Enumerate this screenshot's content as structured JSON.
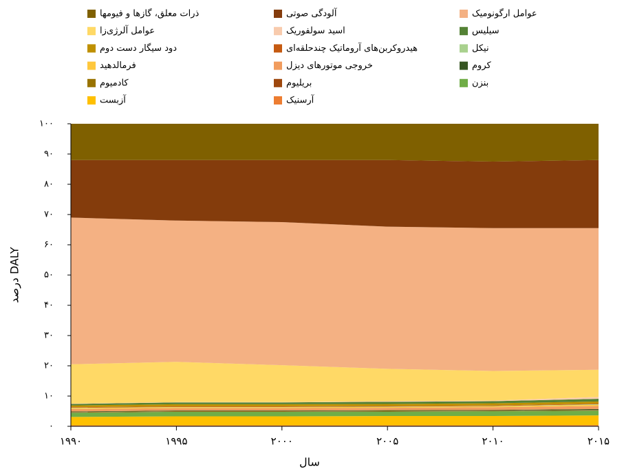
{
  "chart_data": {
    "type": "stacked-area",
    "x_label": "سال",
    "y_label": "درصد DALY",
    "x": [
      1990,
      1995,
      2000,
      2005,
      2010,
      2015
    ],
    "xlim": [
      1990,
      2015
    ],
    "xticks": [
      {
        "value": 1990,
        "label": "۱۹۹۰"
      },
      {
        "value": 1995,
        "label": "۱۹۹۵"
      },
      {
        "value": 2000,
        "label": "۲۰۰۰"
      },
      {
        "value": 2005,
        "label": "۲۰۰۵"
      },
      {
        "value": 2010,
        "label": "۲۰۱۰"
      },
      {
        "value": 2015,
        "label": "۲۰۱۵"
      }
    ],
    "ylim": [
      0,
      100
    ],
    "yticks": [
      {
        "value": 0,
        "label": "۰"
      },
      {
        "value": 10,
        "label": "۱۰"
      },
      {
        "value": 20,
        "label": "۲۰"
      },
      {
        "value": 30,
        "label": "۳۰"
      },
      {
        "value": 40,
        "label": "۴۰"
      },
      {
        "value": 50,
        "label": "۵۰"
      },
      {
        "value": 60,
        "label": "۶۰"
      },
      {
        "value": 70,
        "label": "۷۰"
      },
      {
        "value": 80,
        "label": "۸۰"
      },
      {
        "value": 90,
        "label": "۹۰"
      },
      {
        "value": 100,
        "label": "۱۰۰"
      }
    ],
    "legend": "top",
    "series": [
      {
        "name": "ذرات معلق، گازها و فیومها",
        "color": "#7f6000",
        "values": [
          12,
          12,
          12,
          12,
          12.5,
          12
        ]
      },
      {
        "name": "آلودگی صوتی",
        "color": "#843c0c",
        "values": [
          19,
          20,
          20.5,
          22,
          22,
          22.5
        ]
      },
      {
        "name": "عوامل ارگونومیک",
        "color": "#f4b183",
        "values": [
          48.5,
          46.7,
          47.3,
          47,
          47.2,
          46.8
        ]
      },
      {
        "name": "عوامل آلرژی‌زا",
        "color": "#ffd966",
        "values": [
          13,
          13.3,
          12.2,
          10.7,
          9.8,
          9
        ]
      },
      {
        "name": "اسید سولفوریک",
        "color": "#f8cbad",
        "values": [
          0.1,
          0.1,
          0.1,
          0.2,
          0.2,
          0.6
        ]
      },
      {
        "name": "سیلیس",
        "color": "#548235",
        "values": [
          0.5,
          0.6,
          0.6,
          0.7,
          0.7,
          0.9
        ]
      },
      {
        "name": "دود سیگار دست دوم",
        "color": "#bf9000",
        "values": [
          0.6,
          0.7,
          0.7,
          0.7,
          0.7,
          0.7
        ]
      },
      {
        "name": "هیدروکربن‌های آروماتیک چندحلقه‌ای",
        "color": "#c55a11",
        "values": [
          0.2,
          0.2,
          0.2,
          0.2,
          0.2,
          0.2
        ]
      },
      {
        "name": "نیکل",
        "color": "#a9d18e",
        "values": [
          0.1,
          0.1,
          0.1,
          0.1,
          0.1,
          0.2
        ]
      },
      {
        "name": "فرمالدهید",
        "color": "#ffc83d",
        "values": [
          0.3,
          0.3,
          0.3,
          0.3,
          0.3,
          0.4
        ]
      },
      {
        "name": "خروجی موتورهای دیزل",
        "color": "#f19c5e",
        "values": [
          0.8,
          0.8,
          0.8,
          0.8,
          0.9,
          1
        ]
      },
      {
        "name": "کروم",
        "color": "#375623",
        "values": [
          0.2,
          0.2,
          0.2,
          0.2,
          0.2,
          0.3
        ]
      },
      {
        "name": "کادمیوم",
        "color": "#997300",
        "values": [
          0.1,
          0.1,
          0.1,
          0.1,
          0.1,
          0.1
        ]
      },
      {
        "name": "بریلیوم",
        "color": "#9e480e",
        "values": [
          0.1,
          0.1,
          0.1,
          0.1,
          0.1,
          0.1
        ]
      },
      {
        "name": "بنزن",
        "color": "#70ad47",
        "values": [
          1.4,
          1.5,
          1.5,
          1.5,
          1.6,
          1.6
        ]
      },
      {
        "name": "آزبست",
        "color": "#ffc000",
        "values": [
          2.8,
          3,
          3,
          3.1,
          3.1,
          3.2
        ]
      },
      {
        "name": "آرسنیک",
        "color": "#ed7d31",
        "values": [
          0.3,
          0.3,
          0.3,
          0.3,
          0.3,
          0.4
        ]
      }
    ]
  }
}
